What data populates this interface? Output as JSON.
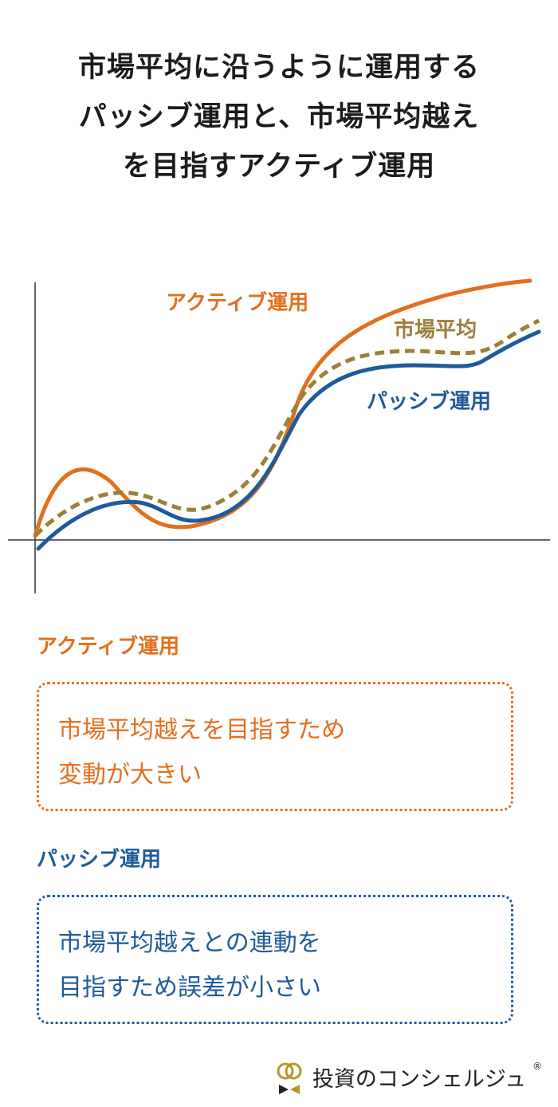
{
  "title": {
    "lines": [
      "市場平均に沿うように運用する",
      "パッシブ運用と、市場平均越え",
      "を目指すアクティブ運用"
    ]
  },
  "chart": {
    "labels": {
      "active": "アクティブ運用",
      "market": "市場平均",
      "passive": "パッシブ運用"
    },
    "colors": {
      "active": "#e36f1e",
      "market": "#9c7f3a",
      "passive": "#1f5a9c",
      "axis": "#333333"
    }
  },
  "sections": {
    "active": {
      "heading": "アクティブ運用",
      "lines": [
        "市場平均越えを目指すため",
        "変動が大きい"
      ]
    },
    "passive": {
      "heading": "パッシブ運用",
      "lines": [
        "市場平均越えとの連動を",
        "目指すため誤差が小さい"
      ]
    }
  },
  "brand": {
    "name": "投資のコンシェルジュ",
    "registered": "®",
    "logo_icon": "rings-logo-icon"
  }
}
